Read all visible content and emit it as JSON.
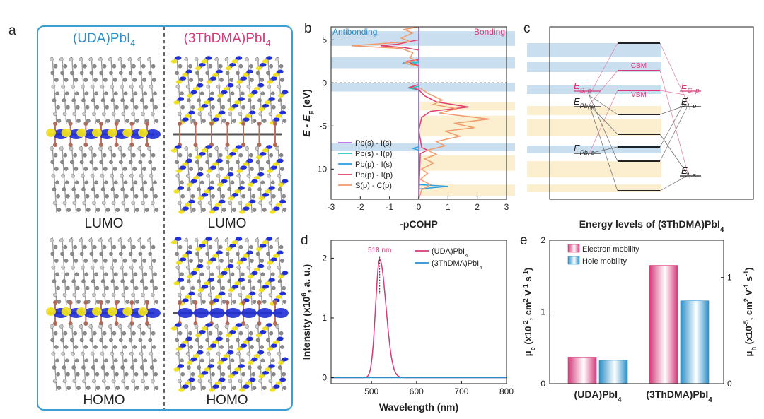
{
  "panel_labels": {
    "a": "a",
    "b": "b",
    "c": "c",
    "d": "d",
    "e": "e"
  },
  "panel_a": {
    "left_title": "(UDA)PbI",
    "right_title": "(3ThDMA)PbI",
    "title_sub": "4",
    "lumo": "LUMO",
    "homo": "HOMO",
    "colors": {
      "border": "#3b9fd6",
      "uda": "#2a8fc9",
      "thdma": "#d63a7a"
    }
  },
  "chart_data": [
    {
      "id": "b",
      "type": "line",
      "xlabel": "-pCOHP",
      "ylabel": "E - E",
      "ylabel_sub": "F",
      "ylabel_unit": " (eV)",
      "xlim": [
        -3,
        3
      ],
      "ylim": [
        -13.5,
        6.5
      ],
      "xticks": [
        -3,
        -2,
        -1,
        0,
        1,
        2,
        3
      ],
      "yticks": [
        5,
        0,
        -5,
        -10
      ],
      "region_labels": {
        "left": "Antibonding",
        "right": "Bonding"
      },
      "series": [
        {
          "name": "Pb(s) - I(s)",
          "color": "#b469e8",
          "points": [
            [
              0,
              6.5
            ],
            [
              0,
              -13.5
            ]
          ]
        },
        {
          "name": "Pb(s) - I(p)",
          "color": "#22c5c5",
          "points": [
            [
              0,
              6.5
            ],
            [
              0,
              2.4
            ],
            [
              -0.3,
              2.3
            ],
            [
              0,
              2.2
            ],
            [
              0,
              -0.4
            ],
            [
              -0.35,
              -0.6
            ],
            [
              0,
              -0.8
            ],
            [
              0,
              -13.5
            ]
          ]
        },
        {
          "name": "Pb(p) - I(s)",
          "color": "#2aa0e0",
          "points": [
            [
              0,
              6.5
            ],
            [
              0,
              2.6
            ],
            [
              -0.55,
              2.3
            ],
            [
              0,
              2.0
            ],
            [
              0,
              -7.4
            ],
            [
              -0.2,
              -7.6
            ],
            [
              0,
              -7.8
            ],
            [
              0,
              -11.8
            ],
            [
              1.0,
              -12.0
            ],
            [
              0,
              -12.3
            ],
            [
              0,
              -13.5
            ]
          ]
        },
        {
          "name": "Pb(p) - I(p)",
          "color": "#e0406a",
          "points": [
            [
              0,
              6.5
            ],
            [
              0,
              5.0
            ],
            [
              -0.3,
              4.8
            ],
            [
              -0.7,
              4.5
            ],
            [
              -1.3,
              4.3
            ],
            [
              -0.5,
              4.1
            ],
            [
              0,
              3.8
            ],
            [
              0,
              2.7
            ],
            [
              -0.4,
              2.5
            ],
            [
              -0.2,
              2.2
            ],
            [
              0,
              2.0
            ],
            [
              0,
              -0.2
            ],
            [
              -0.3,
              -0.5
            ],
            [
              0,
              -0.8
            ],
            [
              0.2,
              -1.5
            ],
            [
              0.6,
              -2.2
            ],
            [
              1.7,
              -2.8
            ],
            [
              0.4,
              -3.3
            ],
            [
              0.1,
              -4.0
            ],
            [
              0,
              -5.5
            ],
            [
              0.1,
              -7.5
            ],
            [
              0.3,
              -7.8
            ],
            [
              0.05,
              -8.2
            ],
            [
              0,
              -13.5
            ]
          ]
        },
        {
          "name": "S(p) - C(p)",
          "color": "#f39a6a",
          "points": [
            [
              0,
              6.5
            ],
            [
              -0.5,
              6.2
            ],
            [
              -0.2,
              5.8
            ],
            [
              -0.6,
              5.2
            ],
            [
              -0.3,
              4.8
            ],
            [
              -2.3,
              4.3
            ],
            [
              -0.6,
              4.0
            ],
            [
              -0.2,
              3.5
            ],
            [
              -0.3,
              2.9
            ],
            [
              -0.1,
              2.6
            ],
            [
              -0.5,
              2.3
            ],
            [
              0,
              1.9
            ],
            [
              0,
              -0.5
            ],
            [
              0.3,
              -1.2
            ],
            [
              0.8,
              -2.0
            ],
            [
              0.5,
              -2.5
            ],
            [
              1.3,
              -3.0
            ],
            [
              0.7,
              -3.5
            ],
            [
              2.4,
              -4.2
            ],
            [
              1.2,
              -4.7
            ],
            [
              1.9,
              -5.2
            ],
            [
              0.9,
              -5.6
            ],
            [
              1.4,
              -6.2
            ],
            [
              0.6,
              -6.8
            ],
            [
              0.9,
              -7.3
            ],
            [
              0.3,
              -7.8
            ],
            [
              0.6,
              -8.3
            ],
            [
              0.2,
              -8.8
            ],
            [
              0.5,
              -9.3
            ],
            [
              0.1,
              -10.0
            ],
            [
              0.3,
              -10.5
            ],
            [
              0.05,
              -11.2
            ],
            [
              0.4,
              -11.8
            ],
            [
              0.1,
              -12.4
            ],
            [
              0,
              -13.5
            ]
          ]
        }
      ],
      "bands_blue": [
        [
          4.3,
          6.0
        ],
        [
          1.7,
          3.0
        ],
        [
          -1.0,
          0.0
        ],
        [
          -7.9,
          -7.0
        ]
      ],
      "bands_yellow": [
        [
          -3.2,
          -2.2
        ],
        [
          -6.2,
          -3.8
        ],
        [
          -10.2,
          -8.4
        ],
        [
          -13.1,
          -11.8
        ]
      ],
      "fermi_level": 0
    },
    {
      "id": "d",
      "type": "line",
      "xlabel": "Wavelength (nm)",
      "ylabel": "Intensity (x10",
      "ylabel_sup": "6",
      "ylabel_unit": ", a. u.)",
      "xlim": [
        410,
        800
      ],
      "ylim": [
        -0.1,
        2.3
      ],
      "xticks": [
        500,
        600,
        700,
        800
      ],
      "yticks": [
        0,
        1,
        2
      ],
      "annotation": "518 nm",
      "peak_x": 518,
      "series": [
        {
          "name": "(UDA)PbI4",
          "color": "#d63a7a",
          "peak": 518,
          "height": 1.98,
          "baseline": 0.0
        },
        {
          "name": "(3ThDMA)PbI4",
          "color": "#2a8fc9",
          "peak": null,
          "height": 0.0,
          "baseline": 0.0
        }
      ],
      "legend": [
        {
          "main": "(UDA)PbI",
          "sub": "4",
          "color": "#d63a7a"
        },
        {
          "main": "(3ThDMA)PbI",
          "sub": "4",
          "color": "#2a8fc9"
        }
      ]
    },
    {
      "id": "e",
      "type": "bar",
      "categories": [
        {
          "main": "(UDA)PbI",
          "sub": "4"
        },
        {
          "main": "(3ThDMA)PbI",
          "sub": "4"
        }
      ],
      "series": [
        {
          "name": "Electron mobility",
          "color": "#d63a7a",
          "axis": "left",
          "values": [
            0.37,
            1.65
          ]
        },
        {
          "name": "Hole mobility",
          "color": "#2a8fc9",
          "axis": "right",
          "values": [
            0.22,
            0.78
          ]
        }
      ],
      "ylim_left": [
        0,
        2
      ],
      "yticks_left": [
        0,
        1,
        2
      ],
      "ylim_right": [
        0,
        1.35
      ],
      "yticks_right": [
        0,
        1
      ],
      "ylabel_left": {
        "sym": "μ",
        "sub": "e",
        "pre": " (x10",
        "sup1": "-2",
        "mid": ", cm",
        "sup2": "2",
        "mid2": " V",
        "sup3": "-1",
        "mid3": " s",
        "sup4": "-1",
        "end": ")"
      },
      "ylabel_right": {
        "sym": "μ",
        "sub": "h",
        "pre": " (x10",
        "sup1": "-5",
        "mid": ", cm",
        "sup2": "2",
        "mid2": " V",
        "sup3": "-1",
        "mid3": " s",
        "sup4": "-1",
        "end": ")"
      }
    }
  ],
  "panel_c": {
    "caption": "Energy levels of (3ThDMA)PbI",
    "caption_sub": "4",
    "cbm": "CBM",
    "vbm": "VBM",
    "labels_left": [
      {
        "main": "E",
        "sub": "S, p",
        "color": "#d63a7a"
      },
      {
        "main": "E",
        "sub": "Pb, p",
        "color": "#222"
      },
      {
        "main": "E",
        "sub": "Pb, s",
        "color": "#222"
      }
    ],
    "labels_right": [
      {
        "main": "E",
        "sub": "C, p",
        "color": "#d63a7a"
      },
      {
        "main": "E",
        "sub": "I, p",
        "color": "#222"
      },
      {
        "main": "E",
        "sub": "I, s",
        "color": "#222"
      }
    ]
  }
}
